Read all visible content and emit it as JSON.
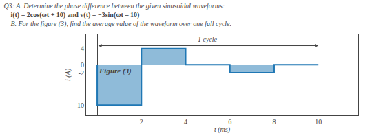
{
  "chart_data": {
    "type": "line",
    "title": [
      "Q3: A. Determine the phase difference between the given sinusoidal waveforms:",
      "    i(t) = 2cos(ωt + 10) and v(t) = −3sin(ωt – 10)",
      "    B. For the figure (3), find the average value of the waveform over one full cycle."
    ],
    "x_label": "t (ms)",
    "y_label": "i (A)",
    "x": [
      0,
      0,
      2,
      2,
      4,
      4,
      6,
      6,
      8,
      8,
      10
    ],
    "values": [
      0,
      -10,
      -10,
      4,
      4,
      0,
      0,
      -2,
      -2,
      0,
      0
    ],
    "xlim": [
      -0.5,
      11.8
    ],
    "ylim": [
      -12.5,
      7.5
    ],
    "xticks": [
      2,
      4,
      6,
      8,
      10
    ],
    "yticks": [
      -10,
      -2,
      0,
      4
    ],
    "grid": false,
    "annotations": [
      {
        "text": "1 cycle",
        "x": [
          0,
          10
        ]
      },
      {
        "text": "Figure (3)"
      }
    ]
  }
}
